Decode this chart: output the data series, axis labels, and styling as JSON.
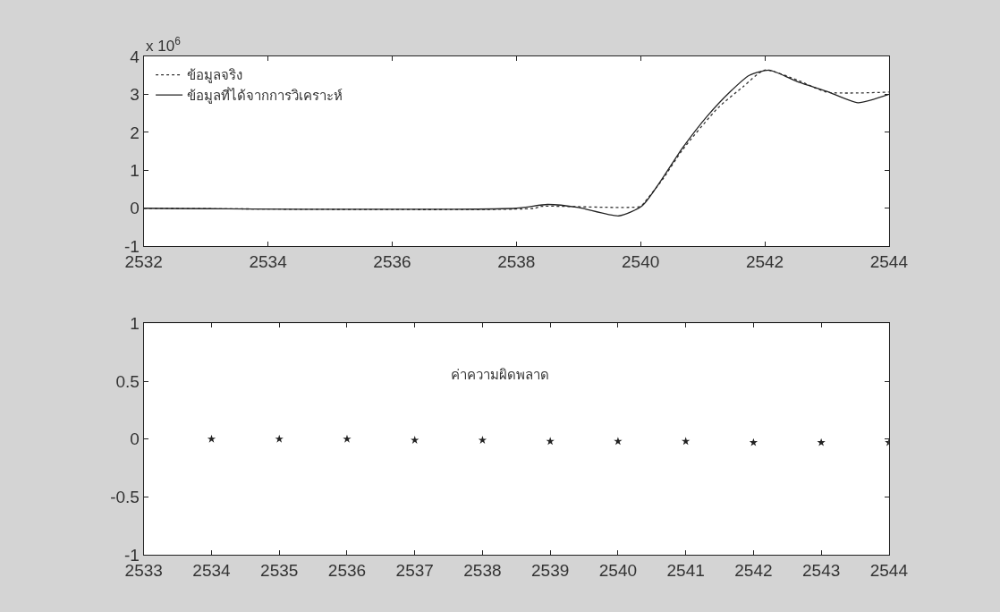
{
  "chart_data": [
    {
      "type": "line",
      "ylabel": "x 10$^{6}$",
      "xlim": [
        2532,
        2544
      ],
      "ylim": [
        -1,
        4
      ],
      "xticks": [
        2532,
        2534,
        2536,
        2538,
        2540,
        2542,
        2544
      ],
      "yticks": [
        -1,
        0,
        1,
        2,
        3,
        4
      ],
      "grid": false,
      "legend": "top left",
      "series": [
        {
          "name": "ข้อมูลจริง",
          "color": "#333333",
          "line_style": "dotted",
          "x": [
            2532,
            2538.3,
            2538.4,
            2540.0,
            2540.07,
            2540.35,
            2540.68,
            2541.25,
            2541.65,
            2542.0,
            2542.55,
            2543.0,
            2544
          ],
          "values": [
            0,
            0,
            0.05,
            0.05,
            0.17,
            0.75,
            1.55,
            2.65,
            3.2,
            3.64,
            3.36,
            3.06,
            3.06
          ]
        },
        {
          "name": "ข้อมูลที่ได้จากการวิเคราะห์",
          "color": "#222222",
          "line_style": "solid",
          "x": [
            2532,
            2538.0,
            2538.5,
            2539.0,
            2539.65,
            2540.03,
            2540.68,
            2541.06,
            2541.45,
            2541.75,
            2542.07,
            2542.55,
            2543.0,
            2543.5,
            2544
          ],
          "values": [
            0,
            0,
            0.1,
            0.02,
            -0.2,
            0.07,
            1.6,
            2.4,
            3.08,
            3.5,
            3.64,
            3.32,
            3.08,
            2.78,
            3.0
          ]
        }
      ]
    },
    {
      "type": "scatter",
      "marker": "star",
      "xlim": [
        2533,
        2544
      ],
      "ylim": [
        -1,
        1
      ],
      "xticks": [
        2533,
        2534,
        2535,
        2536,
        2537,
        2538,
        2539,
        2540,
        2541,
        2542,
        2543,
        2544
      ],
      "yticks": [
        -1,
        -0.5,
        0,
        0.5,
        1
      ],
      "grid": false,
      "legend": false,
      "annotations": [
        "ค่าความผิดพลาด"
      ],
      "series": [
        {
          "color": "#222222",
          "x": [
            2534,
            2535,
            2536,
            2537,
            2538,
            2539,
            2540,
            2541,
            2542,
            2543,
            2544
          ],
          "values": [
            0,
            0,
            0,
            -0.01,
            -0.01,
            -0.02,
            -0.02,
            -0.02,
            -0.03,
            -0.03,
            -0.03
          ]
        }
      ]
    }
  ]
}
